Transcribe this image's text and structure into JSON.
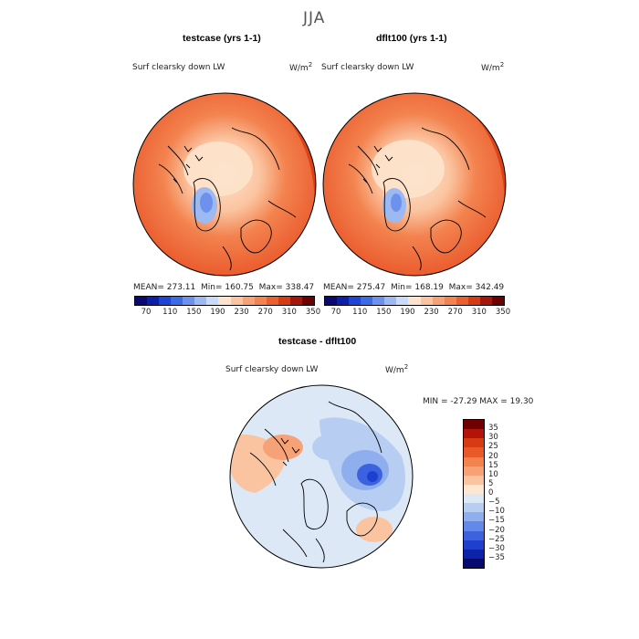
{
  "figure": {
    "season": "JJA"
  },
  "panels": [
    {
      "title": "testcase (yrs 1-1)",
      "variable": "Surf clearsky down LW",
      "units": "W/m",
      "units_exp": "2",
      "stats": {
        "mean_label": "MEAN=",
        "mean": "273.11",
        "min_label": "Min=",
        "min": "160.75",
        "max_label": "Max=",
        "max": "338.47"
      }
    },
    {
      "title": "dflt100 (yrs 1-1)",
      "variable": "Surf clearsky down LW",
      "units": "W/m",
      "units_exp": "2",
      "stats": {
        "mean_label": "MEAN=",
        "mean": "275.47",
        "min_label": "Min=",
        "min": "168.19",
        "max_label": "Max=",
        "max": "342.49"
      }
    }
  ],
  "diff_panel": {
    "title": "testcase - dflt100",
    "variable": "Surf clearsky down LW",
    "units": "W/m",
    "units_exp": "2",
    "minmax": "MIN = -27.29 MAX =  19.30"
  },
  "colorbar_main": {
    "colors": [
      "#08086e",
      "#0c1fa8",
      "#1f43d6",
      "#3d6ae6",
      "#6d92ee",
      "#9cb9f2",
      "#c9dbf6",
      "#fde3cc",
      "#fbc4a0",
      "#f7a177",
      "#f3834f",
      "#ea5f2c",
      "#d63b14",
      "#a6160a",
      "#6e0000"
    ],
    "tick_labels": [
      "70",
      "110",
      "150",
      "190",
      "230",
      "270",
      "310",
      "350"
    ]
  },
  "colorbar_diff": {
    "colors": [
      "#6e0000",
      "#b3140a",
      "#d63b14",
      "#ea5a28",
      "#f3834f",
      "#f7a177",
      "#fbc4a0",
      "#fde6d2",
      "#dce8f6",
      "#b7cdf2",
      "#8eaeee",
      "#6289e8",
      "#3d62e0",
      "#1f3fce",
      "#0c22a8",
      "#08086e"
    ],
    "tick_labels": [
      "35",
      "30",
      "25",
      "20",
      "15",
      "10",
      "5",
      "0",
      "−5",
      "−10",
      "−15",
      "−20",
      "−25",
      "−30",
      "−35"
    ]
  },
  "colors": {
    "ocean_warm": "#ea5a2c",
    "ring_mid": "#f3834f",
    "interior_light": "#fbc4a0",
    "interior_pale": "#fde3cc",
    "greenland_cold": "#6d92ee",
    "diff_base": "#c9dbf6",
    "coast": "#000000"
  }
}
